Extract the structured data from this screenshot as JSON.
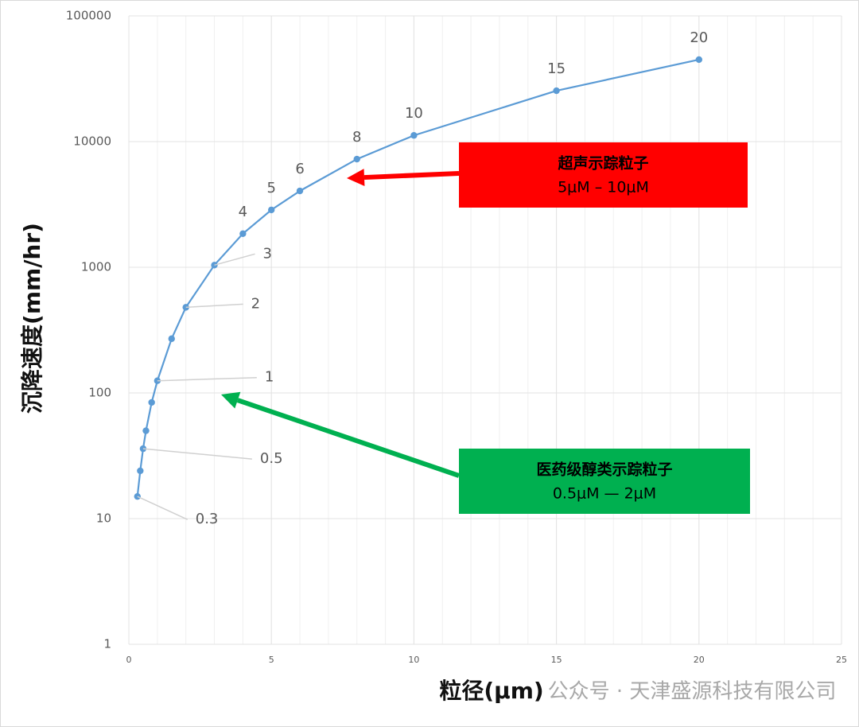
{
  "chart_data": {
    "type": "line",
    "y_scale": "log",
    "grid": true,
    "y_label": "沉降速度(mm/hr)",
    "x_label": "粒径(μm)",
    "watermark": "公众号 · 天津盛源科技有限公司",
    "xlim": [
      0,
      25
    ],
    "xticks": [
      0,
      5,
      10,
      15,
      20,
      25
    ],
    "ylim": [
      1,
      100000
    ],
    "yticks": [
      1,
      10,
      100,
      1000,
      10000,
      100000
    ],
    "x": [
      0.3,
      0.4,
      0.5,
      0.6,
      0.8,
      1,
      1.5,
      2,
      3,
      4,
      5,
      6,
      8,
      10,
      15,
      20
    ],
    "series": [
      {
        "color": "#5b9bd5",
        "values": [
          15,
          24,
          36,
          50,
          84,
          125,
          270,
          480,
          1040,
          1850,
          2860,
          4050,
          7250,
          11200,
          25400,
          44900
        ]
      }
    ],
    "point_labels": [
      0.3,
      0.5,
      1,
      2,
      3,
      4,
      5,
      6,
      8,
      10,
      15,
      20
    ],
    "annotations": [
      {
        "title": "超声示踪粒子",
        "range": "5μM – 10μM",
        "color": "#ff0000"
      },
      {
        "title": "医药级醇类示踪粒子",
        "range": "0.5μM — 2μM",
        "color": "#00b050"
      }
    ]
  }
}
